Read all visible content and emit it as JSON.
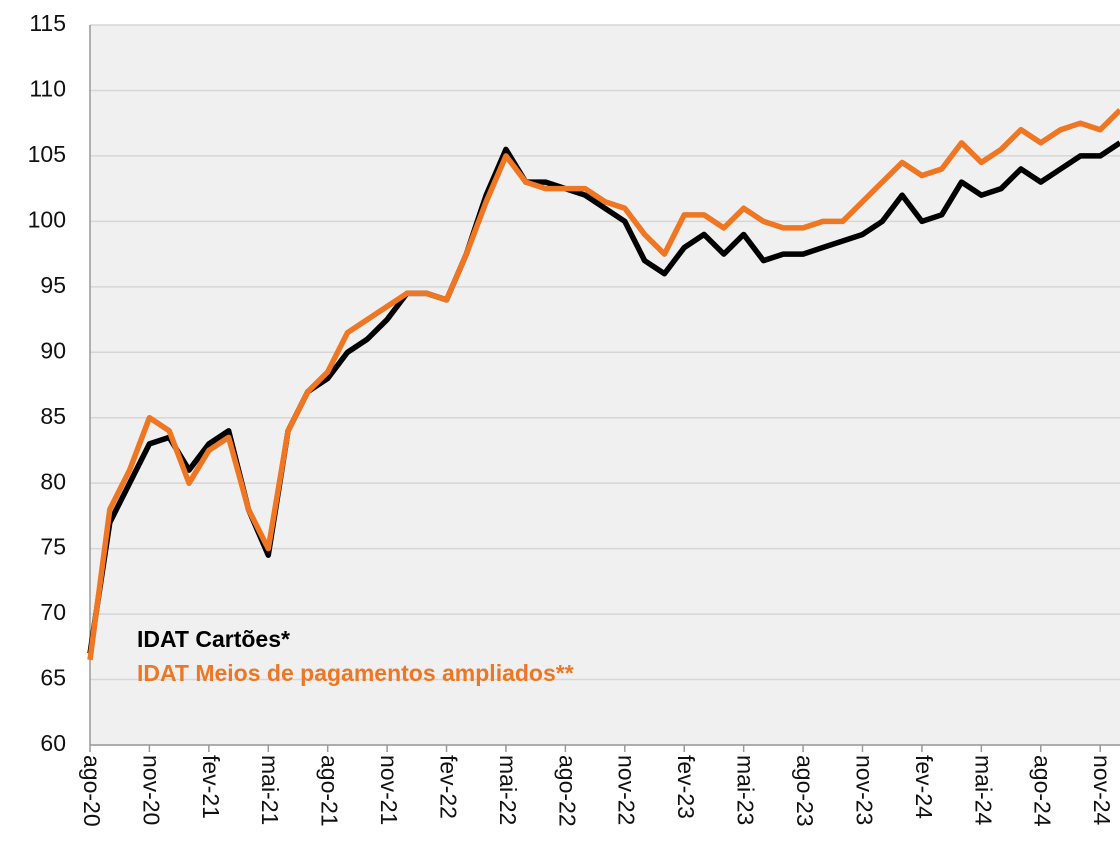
{
  "chart_data": {
    "type": "line",
    "x": [
      "2020-08",
      "2020-09",
      "2020-10",
      "2020-11",
      "2020-12",
      "2021-01",
      "2021-02",
      "2021-03",
      "2021-04",
      "2021-05",
      "2021-06",
      "2021-07",
      "2021-08",
      "2021-09",
      "2021-10",
      "2021-11",
      "2021-12",
      "2022-01",
      "2022-02",
      "2022-03",
      "2022-04",
      "2022-05",
      "2022-06",
      "2022-07",
      "2022-08",
      "2022-09",
      "2022-10",
      "2022-11",
      "2022-12",
      "2023-01",
      "2023-02",
      "2023-03",
      "2023-04",
      "2023-05",
      "2023-06",
      "2023-07",
      "2023-08",
      "2023-09",
      "2023-10",
      "2023-11",
      "2023-12",
      "2024-01",
      "2024-02",
      "2024-03",
      "2024-04",
      "2024-05",
      "2024-06",
      "2024-07",
      "2024-08",
      "2024-09",
      "2024-10",
      "2024-11",
      "2024-12"
    ],
    "series": [
      {
        "name": "IDAT Cartões*",
        "color": "#000000",
        "values": [
          67,
          77,
          80,
          83,
          83.5,
          81,
          83,
          84,
          78,
          74.5,
          84,
          87,
          88,
          90,
          91,
          92.5,
          94.5,
          94.5,
          94,
          97.5,
          102,
          105.5,
          103,
          103,
          102.5,
          102,
          101,
          100,
          97,
          96,
          98,
          99,
          97.5,
          99,
          97,
          97.5,
          97.5,
          98,
          98.5,
          99,
          100,
          102,
          100,
          100.5,
          103,
          102,
          102.5,
          104,
          103,
          104,
          105,
          105,
          106
        ]
      },
      {
        "name": "IDAT Meios de pagamentos ampliados**",
        "color": "#ef7622",
        "values": [
          66.5,
          78,
          81,
          85,
          84,
          80,
          82.5,
          83.5,
          78,
          75,
          84,
          87,
          88.5,
          91.5,
          92.5,
          93.5,
          94.5,
          94.5,
          94,
          97.5,
          101.5,
          105,
          103,
          102.5,
          102.5,
          102.5,
          101.5,
          101,
          99,
          97.5,
          100.5,
          100.5,
          99.5,
          101,
          100,
          99.5,
          99.5,
          100,
          100,
          101.5,
          103,
          104.5,
          103.5,
          104,
          106,
          104.5,
          105.5,
          107,
          106,
          107,
          107.5,
          107,
          108.5
        ]
      }
    ],
    "xlim": [
      "2020-08",
      "2024-12"
    ],
    "xticks": [
      {
        "value": "2020-08",
        "label": "ago-20"
      },
      {
        "value": "2020-11",
        "label": "nov-20"
      },
      {
        "value": "2021-02",
        "label": "fev-21"
      },
      {
        "value": "2021-05",
        "label": "mai-21"
      },
      {
        "value": "2021-08",
        "label": "ago-21"
      },
      {
        "value": "2021-11",
        "label": "nov-21"
      },
      {
        "value": "2022-02",
        "label": "fev-22"
      },
      {
        "value": "2022-05",
        "label": "mai-22"
      },
      {
        "value": "2022-08",
        "label": "ago-22"
      },
      {
        "value": "2022-11",
        "label": "nov-22"
      },
      {
        "value": "2023-02",
        "label": "fev-23"
      },
      {
        "value": "2023-05",
        "label": "mai-23"
      },
      {
        "value": "2023-08",
        "label": "ago-23"
      },
      {
        "value": "2023-11",
        "label": "nov-23"
      },
      {
        "value": "2024-02",
        "label": "fev-24"
      },
      {
        "value": "2024-05",
        "label": "mai-24"
      },
      {
        "value": "2024-08",
        "label": "ago-24"
      },
      {
        "value": "2024-11",
        "label": "nov-24"
      }
    ],
    "ylim": [
      60,
      115
    ],
    "yticks": [
      60,
      65,
      70,
      75,
      80,
      85,
      90,
      95,
      100,
      105,
      110,
      115
    ],
    "grid": true
  }
}
